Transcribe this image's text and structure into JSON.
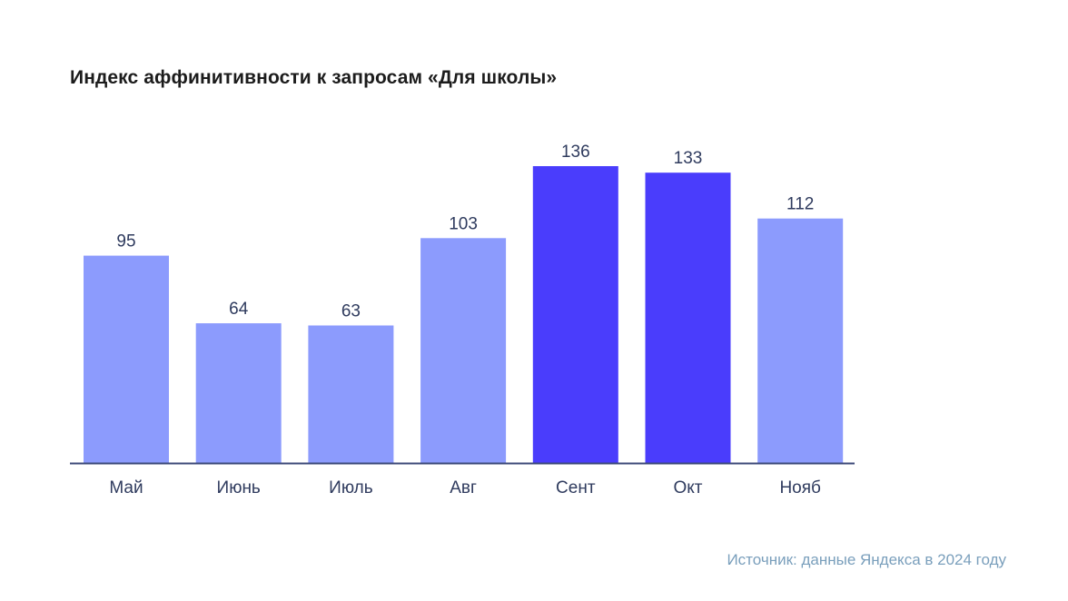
{
  "chart_data": {
    "type": "bar",
    "title": "Индекс аффинитивности к запросам «Для школы»",
    "categories": [
      "Май",
      "Июнь",
      "Июль",
      "Авг",
      "Сент",
      "Окт",
      "Нояб"
    ],
    "values": [
      95,
      64,
      63,
      103,
      136,
      133,
      112
    ],
    "highlighted": [
      "Сент",
      "Окт"
    ],
    "xlabel": "",
    "ylabel": "",
    "ylim": [
      0,
      136
    ],
    "grid": false,
    "colors": {
      "bar": "#8c9bfd",
      "bar_highlight": "#4a3dfc",
      "axis": "#3c4a78",
      "label": "#2f3b5e",
      "title": "#1c1c1c",
      "source": "#7a9fbc"
    }
  },
  "footer": {
    "source": "Источник: данные Яндекса в 2024 году"
  }
}
